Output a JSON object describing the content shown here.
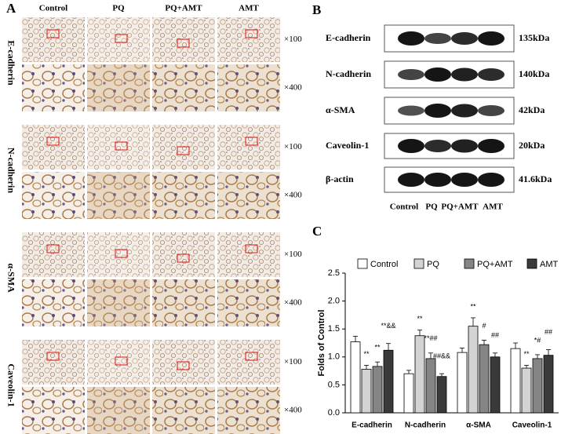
{
  "panel_a": {
    "label": "A",
    "columns": [
      "Control",
      "PQ",
      "PQ+AMT",
      "AMT"
    ],
    "rows": [
      "E-cadherin",
      "N-cadherin",
      "α-SMA",
      "Caveolin-1"
    ],
    "magnifications": [
      "×100",
      "×400"
    ]
  },
  "panel_b": {
    "label": "B",
    "rows": [
      {
        "protein": "E-cadherin",
        "size": "135kDa"
      },
      {
        "protein": "N-cadherin",
        "size": "140kDa"
      },
      {
        "protein": "α-SMA",
        "size": "42kDa"
      },
      {
        "protein": "Caveolin-1",
        "size": "20kDa"
      },
      {
        "protein": "β-actin",
        "size": "41.6kDa"
      }
    ],
    "lanes": [
      "Control",
      "PQ",
      "PQ+AMT",
      "AMT"
    ]
  },
  "chart_data": {
    "type": "bar",
    "panel_label": "C",
    "y_label": "Folds of Control",
    "categories": [
      "E-cadherin",
      "N-cadherin",
      "α-SMA",
      "Caveolin-1"
    ],
    "series": [
      {
        "name": "Control",
        "color": "#ffffff",
        "values": [
          1.27,
          0.7,
          1.08,
          1.15
        ],
        "errors": [
          0.1,
          0.06,
          0.08,
          0.1
        ]
      },
      {
        "name": "PQ",
        "color": "#d3d3d3",
        "values": [
          0.78,
          1.38,
          1.55,
          0.8
        ],
        "errors": [
          0.07,
          0.1,
          0.15,
          0.05
        ],
        "annotations": [
          "**",
          "**",
          "**",
          "**"
        ]
      },
      {
        "name": "PQ+AMT",
        "color": "#858585",
        "values": [
          0.83,
          0.97,
          1.22,
          0.97
        ],
        "errors": [
          0.08,
          0.1,
          0.08,
          0.07
        ],
        "annotations": [
          "**",
          "**##",
          "#",
          "*#"
        ]
      },
      {
        "name": "AMT",
        "color": "#3a3a3a",
        "values": [
          1.12,
          0.65,
          1.0,
          1.03
        ],
        "errors": [
          0.12,
          0.05,
          0.07,
          0.1
        ],
        "annotations": [
          "**&&",
          "##&&",
          "##",
          "##"
        ]
      }
    ],
    "ylim": [
      0,
      2.5
    ],
    "yticks": [
      {
        "value": 0,
        "label": "0.0"
      },
      {
        "value": 0.5,
        "label": "0.5"
      },
      {
        "value": 1,
        "label": "1.0"
      },
      {
        "value": 1.5,
        "label": "1.5"
      },
      {
        "value": 2,
        "label": "2.0"
      },
      {
        "value": 2.5,
        "label": "2.5"
      }
    ]
  }
}
